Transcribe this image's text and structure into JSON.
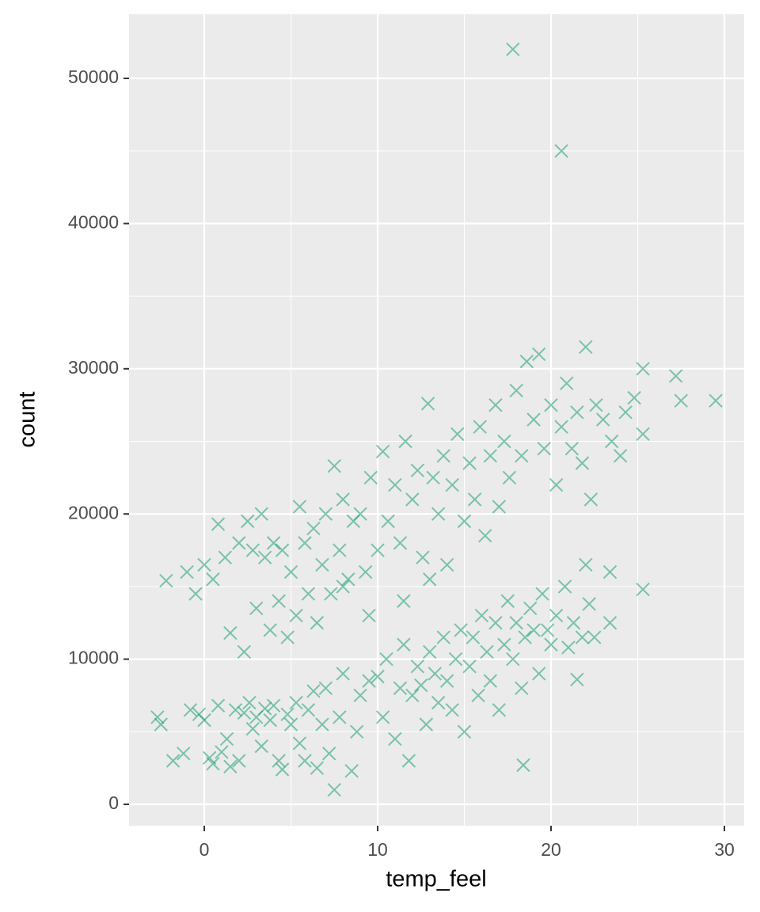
{
  "chart_data": {
    "type": "scatter",
    "x_label": "temp_feel",
    "y_label": "count",
    "color": "#1b9e77",
    "grid": true,
    "xlim": [
      -4.34,
      31.14
    ],
    "ylim": [
      -1472,
      54417
    ],
    "xticks": [
      0,
      10,
      20,
      30
    ],
    "yticks": [
      0,
      10000,
      20000,
      30000,
      40000,
      50000
    ],
    "x": [
      -2.5,
      -1.8,
      -1.2,
      -0.8,
      -0.3,
      0,
      0.3,
      0.5,
      0.8,
      1,
      1.3,
      1.5,
      1.8,
      2,
      2.3,
      2.6,
      2.8,
      3,
      3.3,
      3.5,
      3.8,
      4,
      4.3,
      4.5,
      4.8,
      5,
      5.3,
      5.5,
      5.8,
      6,
      6.3,
      6.5,
      6.8,
      7,
      7.2,
      7.5,
      7.8,
      8,
      8.5,
      8.8,
      9,
      9.5,
      10,
      10.3,
      10.5,
      11,
      11.3,
      11.5,
      11.8,
      12,
      12.3,
      12.5,
      12.8,
      13,
      13.3,
      13.5,
      13.8,
      14,
      14.3,
      14.5,
      14.8,
      15,
      15.3,
      15.5,
      15.8,
      16,
      16.3,
      16.5,
      16.8,
      17,
      17.3,
      17.5,
      17.8,
      18,
      18.3,
      18.5,
      18.8,
      19,
      19.3,
      19.5,
      19.8,
      20,
      20.3,
      20.8,
      21.3,
      21.8,
      22.2,
      22.5,
      21,
      22,
      -1,
      -0.5,
      0,
      0.5,
      0.8,
      1.2,
      1.5,
      2,
      2.3,
      2.5,
      2.8,
      3,
      3.3,
      3.5,
      3.8,
      4,
      4.3,
      4.5,
      4.8,
      5,
      5.3,
      5.5,
      5.8,
      6,
      6.3,
      6.5,
      6.8,
      7,
      7.3,
      7.5,
      7.8,
      8,
      8.3,
      8.6,
      9,
      9.3,
      9.6,
      10,
      10.3,
      10.6,
      11,
      11.3,
      11.6,
      12,
      12.3,
      12.6,
      12.9,
      13.2,
      13.5,
      13.8,
      14,
      14.3,
      14.6,
      15,
      15.3,
      15.6,
      15.9,
      16.2,
      16.5,
      16.8,
      17,
      17.3,
      17.6,
      18,
      18.3,
      18.6,
      19,
      19.3,
      19.6,
      20,
      20.3,
      20.6,
      20.9,
      21.2,
      21.5,
      21.8,
      22,
      22.3,
      22.6,
      23,
      23.5,
      24,
      24.3,
      24.8,
      13,
      11.5,
      9.5,
      8,
      17.8,
      20.6,
      29.5,
      27.5,
      27.2,
      25.3,
      25.3,
      25.3,
      23.4,
      23.4,
      18.4,
      21.5,
      -2.7,
      -2.2
    ],
    "values": [
      5500,
      3000,
      3500,
      6500,
      6200,
      5800,
      3200,
      2800,
      6800,
      3600,
      4500,
      2600,
      6500,
      3000,
      6300,
      7000,
      5200,
      6000,
      4000,
      6600,
      5800,
      6800,
      3000,
      2400,
      6200,
      5500,
      7000,
      4200,
      3000,
      6500,
      7800,
      2500,
      5500,
      8000,
      3500,
      1000,
      6000,
      9000,
      2300,
      5000,
      7500,
      8500,
      8800,
      6000,
      10000,
      4500,
      8000,
      11000,
      3000,
      7500,
      9500,
      8200,
      5500,
      10500,
      9000,
      7000,
      11500,
      8500,
      6500,
      10000,
      12000,
      5000,
      9500,
      11500,
      7500,
      13000,
      10500,
      8500,
      12500,
      6500,
      11000,
      14000,
      10000,
      12500,
      8000,
      11500,
      13500,
      12000,
      9000,
      14500,
      12000,
      11000,
      13000,
      15000,
      12500,
      11500,
      13800,
      11500,
      10800,
      16500,
      16000,
      14500,
      16500,
      15500,
      19300,
      17000,
      11800,
      18000,
      10500,
      19500,
      17500,
      13500,
      20000,
      17000,
      12000,
      18000,
      14000,
      17500,
      11500,
      16000,
      13000,
      20500,
      18000,
      14500,
      19000,
      12500,
      16500,
      20000,
      14500,
      23300,
      17500,
      21000,
      15500,
      19500,
      20000,
      16000,
      22500,
      17500,
      24300,
      19500,
      22000,
      18000,
      25000,
      21000,
      23000,
      17000,
      27600,
      22500,
      20000,
      24000,
      16500,
      22000,
      25500,
      19500,
      23500,
      21000,
      26000,
      18500,
      24000,
      27500,
      20500,
      25000,
      22500,
      28500,
      24000,
      30500,
      26500,
      31000,
      24500,
      27500,
      22000,
      26000,
      29000,
      24500,
      27000,
      23500,
      31500,
      21000,
      27500,
      26500,
      25000,
      24000,
      27000,
      28000,
      15500,
      14000,
      13000,
      15000,
      52000,
      45000,
      27800,
      27800,
      29500,
      30000,
      25500,
      14800,
      16000,
      12500,
      2700,
      8600,
      6000,
      15400
    ]
  }
}
